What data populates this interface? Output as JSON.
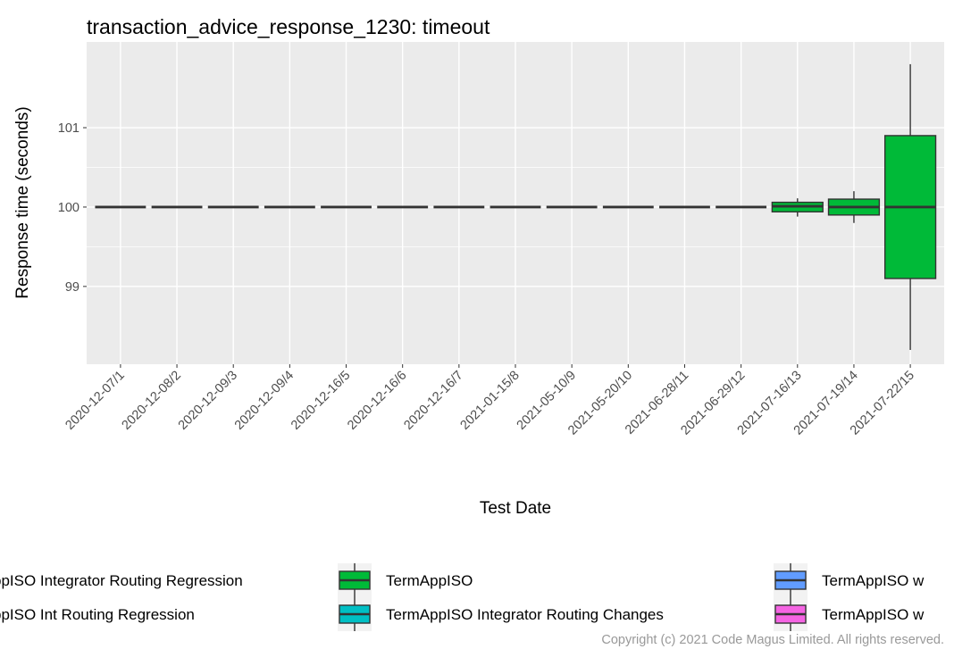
{
  "chart_data": {
    "type": "box",
    "title": "transaction_advice_response_1230: timeout",
    "x_label": "Test Date",
    "y_label": "Response time (seconds)",
    "categories": [
      "2020-12-07/1",
      "2020-12-08/2",
      "2020-12-09/3",
      "2020-12-09/4",
      "2020-12-16/5",
      "2020-12-16/6",
      "2020-12-16/7",
      "2021-01-15/8",
      "2021-05-10/9",
      "2021-05-20/10",
      "2021-06-28/11",
      "2021-06-29/12",
      "2021-07-16/13",
      "2021-07-19/14",
      "2021-07-22/15"
    ],
    "series": [
      {
        "name": "TermAppISO",
        "color": "#00BA38",
        "boxes": [
          {
            "min": 100,
            "q1": 100,
            "median": 100,
            "q3": 100,
            "max": 100
          },
          {
            "min": 100,
            "q1": 100,
            "median": 100,
            "q3": 100,
            "max": 100
          },
          {
            "min": 100,
            "q1": 100,
            "median": 100,
            "q3": 100,
            "max": 100
          },
          {
            "min": 100,
            "q1": 100,
            "median": 100,
            "q3": 100,
            "max": 100
          },
          {
            "min": 100,
            "q1": 100,
            "median": 100,
            "q3": 100,
            "max": 100
          },
          {
            "min": 100,
            "q1": 100,
            "median": 100,
            "q3": 100,
            "max": 100
          },
          {
            "min": 100,
            "q1": 100,
            "median": 100,
            "q3": 100,
            "max": 100
          },
          {
            "min": 100,
            "q1": 100,
            "median": 100,
            "q3": 100,
            "max": 100
          },
          {
            "min": 100,
            "q1": 100,
            "median": 100,
            "q3": 100,
            "max": 100
          },
          {
            "min": 100,
            "q1": 100,
            "median": 100,
            "q3": 100,
            "max": 100
          },
          {
            "min": 100,
            "q1": 100,
            "median": 100,
            "q3": 100,
            "max": 100
          },
          {
            "min": 100,
            "q1": 100,
            "median": 100,
            "q3": 100,
            "max": 100
          },
          {
            "min": 99.88,
            "q1": 99.94,
            "median": 100.01,
            "q3": 100.06,
            "max": 100.11
          },
          {
            "min": 99.8,
            "q1": 99.9,
            "median": 100,
            "q3": 100.1,
            "max": 100.2
          },
          {
            "min": 98.2,
            "q1": 99.1,
            "median": 100,
            "q3": 100.9,
            "max": 101.8
          }
        ]
      }
    ],
    "legend": [
      {
        "name": "ppISO Integrator Routing Regression"
      },
      {
        "name": "TermAppISO",
        "color": "#00BA38"
      },
      {
        "name": "TermAppISO w",
        "color": "#619CFF"
      },
      {
        "name": "ppISO Int Routing Regression"
      },
      {
        "name": "TermAppISO Integrator Routing Changes",
        "color": "#00BFC4"
      },
      {
        "name": "TermAppISO w",
        "color": "#F564E3"
      }
    ],
    "ylim": [
      98.02,
      102.08
    ],
    "yticks": [
      99,
      100,
      101
    ],
    "grid": true,
    "copyright": "Copyright (c) 2021 Code Magus Limited. All rights reserved."
  }
}
